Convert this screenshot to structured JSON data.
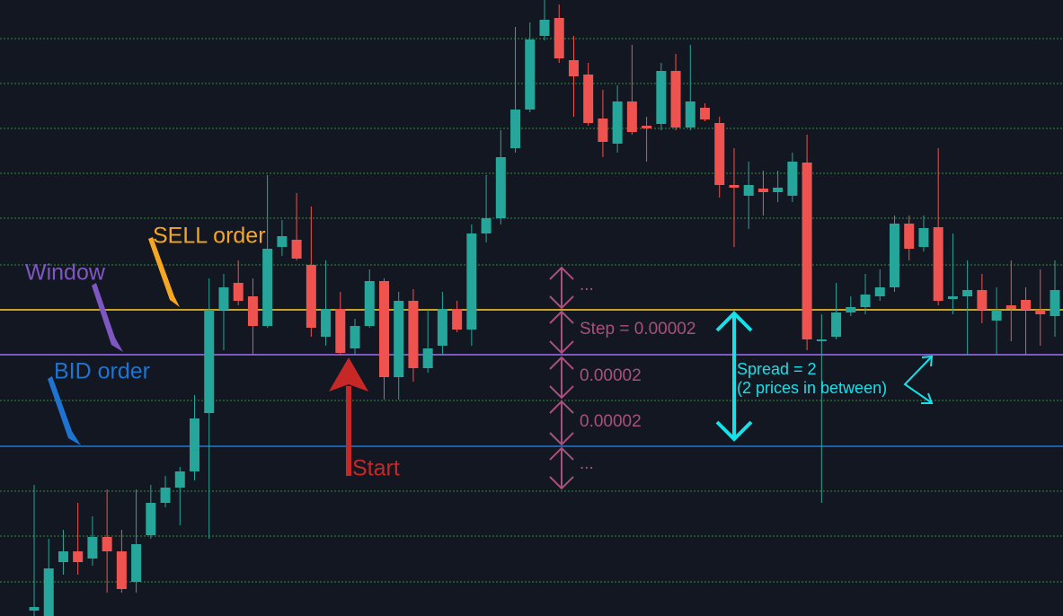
{
  "chart_data": {
    "type": "candlestick",
    "ylim": [
      0,
      686
    ],
    "gridlines": [
      38,
      89,
      139,
      189,
      240,
      291,
      341,
      391,
      443,
      493,
      543,
      593,
      643
    ],
    "grid_color": "#2f8f3a",
    "up_color": "#26a69a",
    "down_color": "#ef5350",
    "levels": [
      {
        "value": 341,
        "color": "#c9a227"
      },
      {
        "value": 291,
        "color": "#7e57c2"
      },
      {
        "value": 189,
        "color": "#1e5fa8"
      }
    ],
    "open": [
      6,
      0,
      60,
      72,
      64,
      88,
      72,
      38,
      90,
      126,
      143,
      161,
      226,
      341,
      371,
      356,
      323,
      411,
      419,
      391,
      311,
      342,
      298,
      323,
      373,
      266,
      351,
      276,
      301,
      342,
      319,
      426,
      443,
      521,
      564,
      646,
      666,
      619,
      603,
      554,
      526,
      573,
      546,
      548,
      607,
      544,
      566,
      549,
      480,
      468,
      476,
      472,
      468,
      505,
      306,
      311,
      338,
      344,
      356,
      366,
      437,
      411,
      433,
      353,
      356,
      363,
      329,
      346,
      352,
      341,
      334
    ],
    "high": [
      146,
      86,
      96,
      126,
      111,
      141,
      96,
      141,
      146,
      156,
      166,
      246,
      376,
      381,
      396,
      376,
      491,
      441,
      471,
      456,
      396,
      361,
      331,
      386,
      376,
      361,
      364,
      341,
      361,
      351,
      436,
      491,
      541,
      656,
      661,
      686,
      681,
      646,
      616,
      586,
      591,
      636,
      556,
      616,
      626,
      636,
      571,
      556,
      521,
      506,
      496,
      496,
      516,
      536,
      336,
      371,
      356,
      381,
      386,
      446,
      446,
      446,
      521,
      426,
      396,
      381,
      366,
      396,
      366,
      386,
      396
    ],
    "low": [
      0,
      0,
      46,
      46,
      56,
      26,
      26,
      26,
      86,
      121,
      101,
      151,
      86,
      296,
      346,
      291,
      321,
      401,
      396,
      311,
      301,
      291,
      291,
      321,
      241,
      241,
      261,
      271,
      291,
      316,
      301,
      416,
      436,
      516,
      561,
      641,
      616,
      556,
      546,
      511,
      516,
      536,
      506,
      541,
      541,
      541,
      551,
      466,
      411,
      431,
      446,
      461,
      461,
      296,
      126,
      308,
      334,
      336,
      351,
      361,
      396,
      406,
      346,
      336,
      291,
      326,
      291,
      306,
      291,
      301,
      311
    ],
    "close": [
      10,
      53,
      72,
      60,
      88,
      72,
      30,
      80,
      126,
      143,
      161,
      220,
      341,
      366,
      351,
      323,
      409,
      423,
      398,
      321,
      342,
      293,
      323,
      373,
      266,
      351,
      276,
      298,
      342,
      319,
      426,
      443,
      511,
      564,
      642,
      664,
      621,
      601,
      549,
      528,
      573,
      539,
      543,
      607,
      544,
      573,
      553,
      480,
      477,
      480,
      472,
      477,
      506,
      308,
      308,
      338,
      344,
      358,
      366,
      437,
      409,
      432,
      351,
      356,
      363,
      341,
      341,
      342,
      341,
      336,
      363
    ],
    "annotations": [
      {
        "text": "SELL order",
        "color": "#f5a623"
      },
      {
        "text": "Window",
        "color": "#7e57c2"
      },
      {
        "text": "BID order",
        "color": "#1e74d0"
      },
      {
        "text": "Start",
        "color": "#c62828"
      },
      {
        "text": "...",
        "color": "#a8507e"
      },
      {
        "text": "Step = 0.00002",
        "color": "#a8507e"
      },
      {
        "text": "0.00002",
        "color": "#a8507e"
      },
      {
        "text": "0.00002",
        "color": "#a8507e"
      },
      {
        "text": "...",
        "color": "#a8507e"
      },
      {
        "text": "Spread = 2",
        "color": "#18e0e8"
      },
      {
        "text": "(2 prices in between)",
        "color": "#18e0e8"
      }
    ]
  }
}
